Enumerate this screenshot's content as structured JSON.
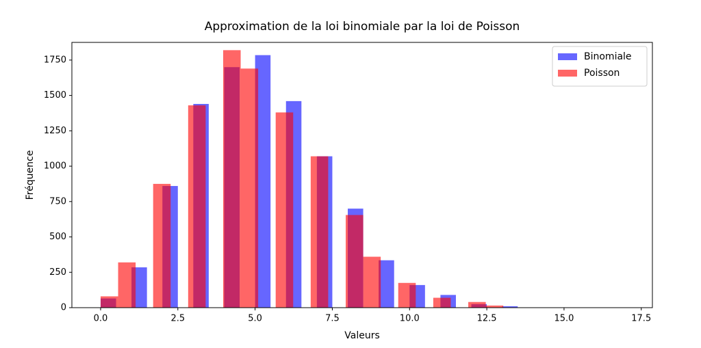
{
  "chart_data": {
    "type": "histogram",
    "title": "Approximation de la loi binomiale par la loi de Poisson",
    "xlabel": "Valeurs",
    "ylabel": "Fréquence",
    "series": [
      {
        "name": "Binomiale",
        "color": "#0000ff",
        "alpha": 0.6,
        "bins": [
          0,
          0.5,
          1,
          1.5,
          2,
          2.5,
          3,
          3.5,
          4,
          4.5,
          5,
          5.5,
          6,
          6.5,
          7,
          7.5,
          8,
          8.5,
          9,
          9.5,
          10,
          10.5,
          11,
          11.5,
          12,
          12.5,
          13,
          13.5,
          14,
          14.5,
          15
        ],
        "values": [
          65,
          0,
          285,
          0,
          860,
          0,
          1440,
          0,
          1700,
          0,
          1785,
          0,
          1460,
          0,
          1070,
          0,
          700,
          0,
          335,
          0,
          160,
          0,
          90,
          0,
          25,
          0,
          10,
          0,
          0,
          0
        ]
      },
      {
        "name": "Poisson",
        "color": "#ff0000",
        "alpha": 0.6,
        "bins": [
          0,
          0.5667,
          1.1333,
          1.7,
          2.2667,
          2.8333,
          3.4,
          3.9667,
          4.5333,
          5.1,
          5.6667,
          6.2333,
          6.8,
          7.3667,
          7.9333,
          8.5,
          9.0667,
          9.6333,
          10.2,
          10.7667,
          11.3333,
          11.9,
          12.4667,
          13.0333,
          13.6,
          14.1667,
          14.7333,
          15.3,
          15.8667,
          16.4333,
          17
        ],
        "values": [
          80,
          320,
          0,
          875,
          0,
          1430,
          0,
          1820,
          1690,
          0,
          1380,
          0,
          1070,
          0,
          655,
          360,
          0,
          175,
          0,
          70,
          0,
          40,
          15,
          0,
          0,
          0,
          0,
          0,
          0,
          0
        ]
      }
    ],
    "xlim": [
      -0.93,
      17.86
    ],
    "ylim": [
      0,
      1875
    ],
    "xticks": [
      {
        "value": 0,
        "label": "0.0"
      },
      2.5,
      {
        "value": 5,
        "label": "5.0"
      },
      7.5,
      {
        "value": 10,
        "label": "10.0"
      },
      12.5,
      {
        "value": 15,
        "label": "15.0"
      },
      17.5
    ],
    "yticks": [
      0,
      250,
      500,
      750,
      1000,
      1250,
      1500,
      1750
    ],
    "legend": "upper right"
  }
}
